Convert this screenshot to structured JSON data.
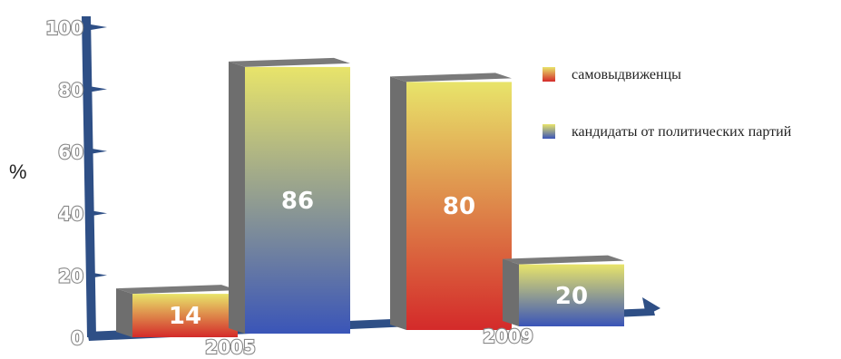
{
  "chart_data": {
    "type": "bar",
    "categories": [
      "2005",
      "2009"
    ],
    "series": [
      {
        "name": "самовыдвиженцы",
        "values": [
          14,
          80
        ]
      },
      {
        "name": "кандидаты от политических партий",
        "values": [
          86,
          20
        ]
      }
    ],
    "ylabel": "%",
    "yticks": [
      "0",
      "20",
      "40",
      "60",
      "80",
      "100"
    ],
    "ylim": [
      0,
      100
    ],
    "legend_position": "right",
    "data_labels": [
      "14",
      "86",
      "80",
      "20"
    ]
  },
  "colors": {
    "warm_top": "#e8e46a",
    "warm_bottom": "#d42a2a",
    "cool_top": "#e8e46a",
    "cool_bottom": "#3a55b8",
    "bar_side": "#6e6e6e",
    "axis": "#2e4f86"
  }
}
